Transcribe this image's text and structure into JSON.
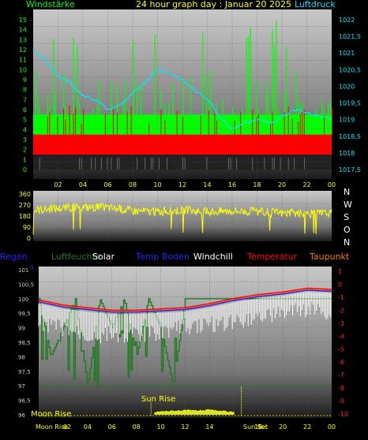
{
  "header": {
    "left": "Windstärke",
    "title": "24 hour graph day : Januar 20 2025",
    "right": "Luftdruck"
  },
  "colors": {
    "cyan": "#00e5ff",
    "green": "#00ff00",
    "red": "#ff0000",
    "yellow": "#ffff00",
    "blue": "#2222ff",
    "orange": "#ff7700",
    "white": "#ffffff",
    "darkgreen": "#1f7a1f",
    "magenta": "#ff33ff"
  },
  "chart_data": [
    {
      "type": "bar",
      "panel": "wind",
      "x_ticks": [
        "02",
        "04",
        "06",
        "08",
        "10",
        "12",
        "14",
        "16",
        "18",
        "20",
        "22",
        "00"
      ],
      "y_left_ticks": [
        "0",
        "1",
        "2",
        "3",
        "4",
        "5",
        "6",
        "7",
        "8",
        "9",
        "10",
        "11",
        "12",
        "13",
        "14",
        "15"
      ],
      "y_right_ticks": [
        "1017,5",
        "1018",
        "1018,5",
        "1019",
        "1019,5",
        "1020",
        "1020,5",
        "1021",
        "1021,5",
        "1022"
      ],
      "series": [
        {
          "name": "Windstärke",
          "color": "green",
          "baseline": 5.5
        },
        {
          "name": "",
          "color": "red",
          "baseline": 3.5
        },
        {
          "name": "Luftdruck",
          "color": "cyan",
          "x_hours": [
            0,
            1,
            2,
            3,
            4,
            5,
            6,
            7,
            8,
            9,
            10,
            11,
            12,
            13,
            14,
            15,
            16,
            17,
            18,
            19,
            20,
            21,
            22,
            23,
            24
          ],
          "values": [
            1021.1,
            1020.8,
            1020.3,
            1020.1,
            1019.7,
            1019.6,
            1019.3,
            1019.4,
            1019.8,
            1020.1,
            1020.5,
            1020.4,
            1020.2,
            1019.9,
            1019.6,
            1019.1,
            1018.7,
            1018.9,
            1019.0,
            1018.9,
            1019.1,
            1019.3,
            1019.2,
            1019.1,
            1019.0
          ]
        }
      ],
      "ylim_left": [
        0,
        15
      ],
      "ylim_right": [
        1017.5,
        1022
      ]
    },
    {
      "type": "line",
      "panel": "wind_direction",
      "y_ticks": [
        "0",
        "90",
        "180",
        "270",
        "360"
      ],
      "y_right_labels": [
        "N",
        "W",
        "S",
        "O",
        "N"
      ],
      "series": [
        {
          "name": "",
          "color": "yellow",
          "x_hours": [
            0,
            2,
            4,
            6,
            8,
            10,
            12,
            14,
            16,
            18,
            20,
            22,
            24
          ],
          "values": [
            230,
            245,
            255,
            250,
            225,
            215,
            230,
            215,
            225,
            215,
            205,
            200,
            205
          ]
        }
      ],
      "ylim": [
        0,
        360
      ]
    },
    {
      "type": "line",
      "panel": "temperature",
      "legend": [
        "Regen",
        "Luftfeuchte",
        "Solar",
        "Temp Boden",
        "Windchill",
        "Temperatur",
        "Taupunkt"
      ],
      "legend_colors": [
        "blue",
        "darkgreen",
        "white",
        "blue",
        "white",
        "red",
        "orange"
      ],
      "y_left_ticks": [
        "96",
        "96,5",
        "97",
        "97,5",
        "98",
        "98,5",
        "99",
        "99,5",
        "100",
        "100,5",
        "101"
      ],
      "y_right_ticks": [
        "1",
        "0",
        "-1",
        "-2",
        "-3",
        "-4",
        "-5",
        "-6",
        "-7",
        "-8",
        "-9",
        "-10"
      ],
      "left_extra_label": "0",
      "annotations": [
        "Sun Rise",
        "Moon Rise",
        "Moon Rise",
        "Sun Set",
        "Set"
      ],
      "x_ticks": [
        "02",
        "04",
        "06",
        "08",
        "10",
        "12",
        "14",
        "16",
        "18",
        "20",
        "22",
        "00"
      ],
      "series": [
        {
          "name": "Temperatur",
          "color": "red",
          "x_hours": [
            0,
            2,
            4,
            6,
            8,
            10,
            12,
            14,
            16,
            18,
            20,
            22,
            24
          ],
          "values": [
            -1.2,
            -1.6,
            -1.8,
            -2.0,
            -2.0,
            -1.9,
            -1.8,
            -1.5,
            -1.1,
            -0.8,
            -0.6,
            -0.3,
            -0.4
          ]
        },
        {
          "name": "Taupunkt",
          "color": "orange",
          "x_hours": [
            0,
            2,
            4,
            6,
            8,
            10,
            12,
            14,
            16,
            18,
            20,
            22,
            24
          ],
          "values": [
            -1.3,
            -1.7,
            -1.9,
            -2.1,
            -2.1,
            -2.0,
            -1.9,
            -1.6,
            -1.2,
            -0.9,
            -0.7,
            -0.4,
            -0.5
          ]
        },
        {
          "name": "Temp Boden",
          "color": "blue",
          "x_hours": [
            0,
            2,
            4,
            6,
            8,
            10,
            12,
            14,
            16,
            18,
            20,
            22,
            24
          ],
          "values": [
            -1.35,
            -1.75,
            -1.95,
            -2.15,
            -2.15,
            -2.05,
            -1.95,
            -1.65,
            -1.25,
            -0.95,
            -0.75,
            -0.45,
            -0.55
          ]
        },
        {
          "name": "Windchill",
          "color": "white",
          "x_hours": [
            0,
            2,
            4,
            6,
            8,
            10,
            12,
            14,
            16,
            18,
            20,
            22,
            24
          ],
          "values": [
            -2.2,
            -2.8,
            -3.4,
            -3.2,
            -3.3,
            -3.0,
            -2.6,
            -2.5,
            -2.2,
            -1.8,
            -1.6,
            -1.3,
            -1.6
          ]
        },
        {
          "name": "Luftfeuchte",
          "color": "darkgreen",
          "x_hours": [
            0,
            1,
            2,
            3,
            4,
            5,
            6,
            7,
            8,
            9,
            10,
            11,
            12,
            13,
            14,
            15,
            16,
            17,
            18,
            19,
            20,
            21,
            22,
            23,
            24
          ],
          "values": [
            100,
            98,
            99,
            100,
            97,
            100,
            99,
            100,
            98,
            100,
            99,
            97,
            100,
            100,
            100,
            100,
            100,
            100,
            100,
            100,
            100,
            100,
            100,
            100,
            100
          ]
        },
        {
          "name": "Solar",
          "color": "yellow",
          "x_hours": [
            9.5,
            10,
            11,
            12,
            13,
            14,
            15,
            16
          ],
          "values": [
            96.05,
            96.08,
            96.1,
            96.12,
            96.11,
            96.13,
            96.09,
            96.05
          ]
        }
      ],
      "ylim_left": [
        96,
        101
      ],
      "ylim_right": [
        -10,
        1
      ]
    }
  ]
}
